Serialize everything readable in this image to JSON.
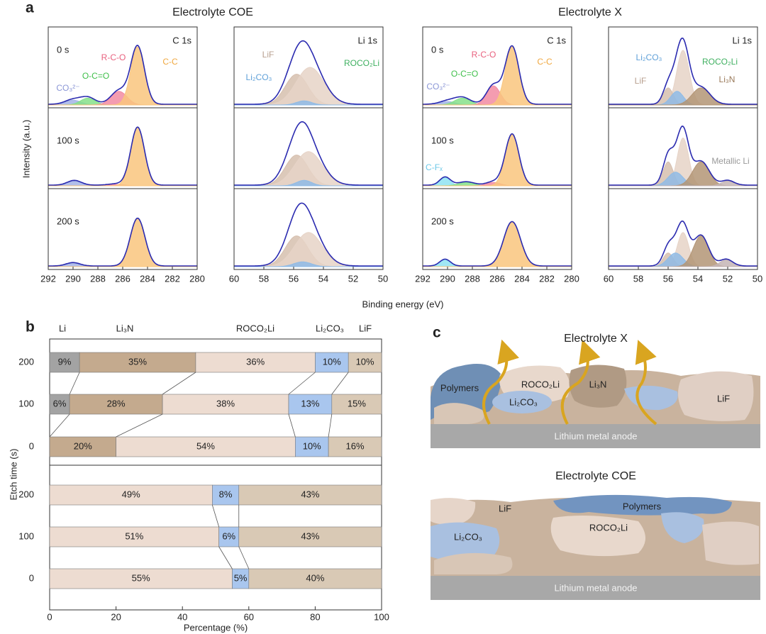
{
  "panel_labels": [
    "a",
    "b",
    "c"
  ],
  "panel_a": {
    "titles": [
      "Electrolyte COE",
      "Electrolyte X"
    ],
    "x_label": "Binding energy (eV)",
    "y_label": "Intensity (a.u.)"
  },
  "chart_data": [
    {
      "type": "spectrum",
      "core_level": "C 1s",
      "xlim": [
        292,
        280
      ],
      "xticks": [
        292,
        290,
        288,
        286,
        284,
        282,
        280
      ],
      "ylim": [
        0,
        1.1
      ],
      "row_labels": [
        "0 s",
        "100 s",
        "200 s"
      ],
      "spectra": [
        {
          "components": [
            {
              "color": "#a3b3e6",
              "center": 290,
              "height": 0.07,
              "fwhm": 1.5
            },
            {
              "color": "#86e08a",
              "center": 288.8,
              "height": 0.1,
              "fwhm": 1.4
            },
            {
              "color": "#f28ba2",
              "center": 286.3,
              "height": 0.2,
              "fwhm": 1.5
            },
            {
              "color": "#f9c57e",
              "center": 284.8,
              "height": 0.85,
              "fwhm": 1.3
            }
          ]
        },
        {
          "components": [
            {
              "color": "#a3b3e6",
              "center": 289.9,
              "height": 0.07,
              "fwhm": 1.3
            },
            {
              "color": "#f28ba2",
              "center": 286.5,
              "height": 0.02,
              "fwhm": 1.5
            },
            {
              "color": "#f9c57e",
              "center": 284.8,
              "height": 0.85,
              "fwhm": 1.3
            }
          ]
        },
        {
          "components": [
            {
              "color": "#a3b3e6",
              "center": 290,
              "height": 0.05,
              "fwhm": 1.3
            },
            {
              "color": "#f9c57e",
              "center": 284.8,
              "height": 0.7,
              "fwhm": 1.4
            }
          ]
        }
      ],
      "annotations": [
        {
          "text": "CO₃²⁻",
          "color": "#8a96d6"
        },
        {
          "text": "O-C=O",
          "color": "#3fbf4a"
        },
        {
          "text": "R-C-O",
          "color": "#e8607e"
        },
        {
          "text": "C-C",
          "color": "#f0a840"
        }
      ]
    },
    {
      "type": "spectrum",
      "core_level": "Li 1s",
      "xlim": [
        60,
        50
      ],
      "xticks": [
        60,
        58,
        56,
        54,
        52,
        50
      ],
      "ylim": [
        0,
        1.1
      ],
      "spectra": [
        {
          "components": [
            {
              "color": "#d6bfae",
              "center": 55.8,
              "height": 0.45,
              "fwhm": 1.8
            },
            {
              "color": "#e6d3c7",
              "center": 54.9,
              "height": 0.55,
              "fwhm": 2.2
            },
            {
              "color": "#8fbbe6",
              "center": 55.3,
              "height": 0.06,
              "fwhm": 1.2
            }
          ]
        },
        {
          "components": [
            {
              "color": "#d6bfae",
              "center": 55.8,
              "height": 0.45,
              "fwhm": 1.8
            },
            {
              "color": "#e6d3c7",
              "center": 55,
              "height": 0.5,
              "fwhm": 2.2
            },
            {
              "color": "#8fbbe6",
              "center": 55.3,
              "height": 0.08,
              "fwhm": 1.2
            }
          ]
        },
        {
          "components": [
            {
              "color": "#d6bfae",
              "center": 55.8,
              "height": 0.45,
              "fwhm": 1.8
            },
            {
              "color": "#e6d3c7",
              "center": 55,
              "height": 0.5,
              "fwhm": 2.2
            },
            {
              "color": "#8fbbe6",
              "center": 55.4,
              "height": 0.07,
              "fwhm": 1.4
            }
          ]
        }
      ],
      "annotations": [
        {
          "text": "LiF",
          "color": "#b8a090"
        },
        {
          "text": "Li₂CO₃",
          "color": "#5fa0d8"
        },
        {
          "text": "ROCO₂Li",
          "color": "#3fb060"
        }
      ]
    },
    {
      "type": "spectrum",
      "core_level": "C 1s",
      "xlim": [
        292,
        280
      ],
      "xticks": [
        292,
        290,
        288,
        286,
        284,
        282,
        280
      ],
      "ylim": [
        0,
        1.1
      ],
      "row_labels": [
        "0 s",
        "100 s",
        "200 s"
      ],
      "spectra": [
        {
          "components": [
            {
              "color": "#a3b3e6",
              "center": 290,
              "height": 0.05,
              "fwhm": 1.5
            },
            {
              "color": "#86e08a",
              "center": 288.8,
              "height": 0.1,
              "fwhm": 1.5
            },
            {
              "color": "#f28ba2",
              "center": 286.3,
              "height": 0.28,
              "fwhm": 1.3
            },
            {
              "color": "#f9c57e",
              "center": 284.8,
              "height": 0.85,
              "fwhm": 1.3
            }
          ]
        },
        {
          "components": [
            {
              "color": "#8fe3f2",
              "center": 290.2,
              "height": 0.12,
              "fwhm": 1.0
            },
            {
              "color": "#86e08a",
              "center": 288.5,
              "height": 0.05,
              "fwhm": 1.5
            },
            {
              "color": "#f28ba2",
              "center": 286.3,
              "height": 0.05,
              "fwhm": 1.3
            },
            {
              "color": "#f9c57e",
              "center": 284.8,
              "height": 0.75,
              "fwhm": 1.3
            }
          ]
        },
        {
          "components": [
            {
              "color": "#8fe3f2",
              "center": 290.2,
              "height": 0.1,
              "fwhm": 1.0
            },
            {
              "color": "#f9c57e",
              "center": 284.8,
              "height": 0.65,
              "fwhm": 1.6
            }
          ]
        }
      ],
      "annotations": [
        {
          "text": "CO₃²⁻",
          "color": "#8a96d6"
        },
        {
          "text": "O-C=O",
          "color": "#3fbf4a"
        },
        {
          "text": "R-C-O",
          "color": "#e8607e"
        },
        {
          "text": "C-C",
          "color": "#f0a840"
        },
        {
          "text": "C-Fₓ",
          "color": "#6cc8e8"
        }
      ]
    },
    {
      "type": "spectrum",
      "core_level": "Li 1s",
      "xlim": [
        60,
        50
      ],
      "xticks": [
        60,
        58,
        56,
        54,
        52,
        50
      ],
      "ylim": [
        0,
        1.1
      ],
      "spectra": [
        {
          "components": [
            {
              "color": "#e6d3c7",
              "center": 55,
              "height": 0.8,
              "fwhm": 1.0
            },
            {
              "color": "#d6bfae",
              "center": 56,
              "height": 0.25,
              "fwhm": 0.8
            },
            {
              "color": "#8fbbe6",
              "center": 55.4,
              "height": 0.2,
              "fwhm": 1.0
            },
            {
              "color": "#b39576",
              "center": 53.8,
              "height": 0.25,
              "fwhm": 1.4
            }
          ]
        },
        {
          "components": [
            {
              "color": "#e6d3c7",
              "center": 55,
              "height": 0.7,
              "fwhm": 0.9
            },
            {
              "color": "#d6bfae",
              "center": 56,
              "height": 0.35,
              "fwhm": 0.8
            },
            {
              "color": "#8fbbe6",
              "center": 55.5,
              "height": 0.2,
              "fwhm": 1.2
            },
            {
              "color": "#b39576",
              "center": 53.8,
              "height": 0.35,
              "fwhm": 1.3
            },
            {
              "color": "#c4b5b5",
              "center": 52,
              "height": 0.07,
              "fwhm": 1.0
            }
          ]
        },
        {
          "components": [
            {
              "color": "#e6d3c7",
              "center": 55,
              "height": 0.5,
              "fwhm": 0.9
            },
            {
              "color": "#d6bfae",
              "center": 56,
              "height": 0.2,
              "fwhm": 0.8
            },
            {
              "color": "#8fbbe6",
              "center": 55.5,
              "height": 0.2,
              "fwhm": 1.2
            },
            {
              "color": "#b39576",
              "center": 53.8,
              "height": 0.45,
              "fwhm": 1.2
            },
            {
              "color": "#c4b5b5",
              "center": 52.1,
              "height": 0.1,
              "fwhm": 1.0
            }
          ]
        }
      ],
      "annotations": [
        {
          "text": "Li₂CO₃",
          "color": "#5fa0d8"
        },
        {
          "text": "ROCO₂Li",
          "color": "#3fb060"
        },
        {
          "text": "LiF",
          "color": "#b8a090"
        },
        {
          "text": "Li₃N",
          "color": "#9a7a5a"
        },
        {
          "text": "Metallic Li",
          "color": "#999999"
        }
      ]
    },
    {
      "type": "stacked_bar",
      "x_label": "Percentage (%)",
      "y_label": "Etch time (s)",
      "xlim": [
        0,
        100
      ],
      "xticks": [
        0,
        20,
        40,
        60,
        80,
        100
      ],
      "series": [
        {
          "name": "Li",
          "color": "#a3a3a3"
        },
        {
          "name": "Li₃N",
          "color": "#c4aa8e"
        },
        {
          "name": "ROCO₂Li",
          "color": "#eddcd1"
        },
        {
          "name": "Li₂CO₃",
          "color": "#a9c6ee"
        },
        {
          "name": "LiF",
          "color": "#d9c9b5"
        }
      ],
      "groups": [
        {
          "categories": [
            "200",
            "100",
            "0"
          ],
          "values": [
            [
              9,
              6,
              0
            ],
            [
              35,
              28,
              20
            ],
            [
              36,
              38,
              54
            ],
            [
              10,
              13,
              10
            ],
            [
              10,
              15,
              16
            ]
          ],
          "value_labels": [
            [
              "9%",
              "6%",
              null
            ],
            [
              "35%",
              "28%",
              "20%"
            ],
            [
              "36%",
              "38%",
              "54%"
            ],
            [
              "10%",
              "13%",
              "10%"
            ],
            [
              "10%",
              "15%",
              "16%"
            ]
          ]
        },
        {
          "categories": [
            "200",
            "100",
            "0"
          ],
          "values": [
            [
              0,
              0,
              0
            ],
            [
              0,
              0,
              0
            ],
            [
              49,
              51,
              55
            ],
            [
              8,
              6,
              5
            ],
            [
              43,
              43,
              40
            ]
          ],
          "value_labels": [
            [
              null,
              null,
              null
            ],
            [
              null,
              null,
              null
            ],
            [
              "49%",
              "51%",
              "55%"
            ],
            [
              "8%",
              "6%",
              "5%"
            ],
            [
              "43%",
              "43%",
              "40%"
            ]
          ]
        }
      ]
    }
  ],
  "diagram": {
    "top": {
      "title": "Electrolyte X",
      "labels": [
        "Polymers",
        "ROCO₂Li",
        "Li₃N",
        "Li₂CO₃",
        "LiF"
      ],
      "anode": "Lithium metal anode"
    },
    "bottom": {
      "title": "Electrolyte COE",
      "labels": [
        "LiF",
        "Polymers",
        "Li₂CO₃",
        "ROCO₂Li"
      ],
      "anode": "Lithium metal anode"
    }
  }
}
